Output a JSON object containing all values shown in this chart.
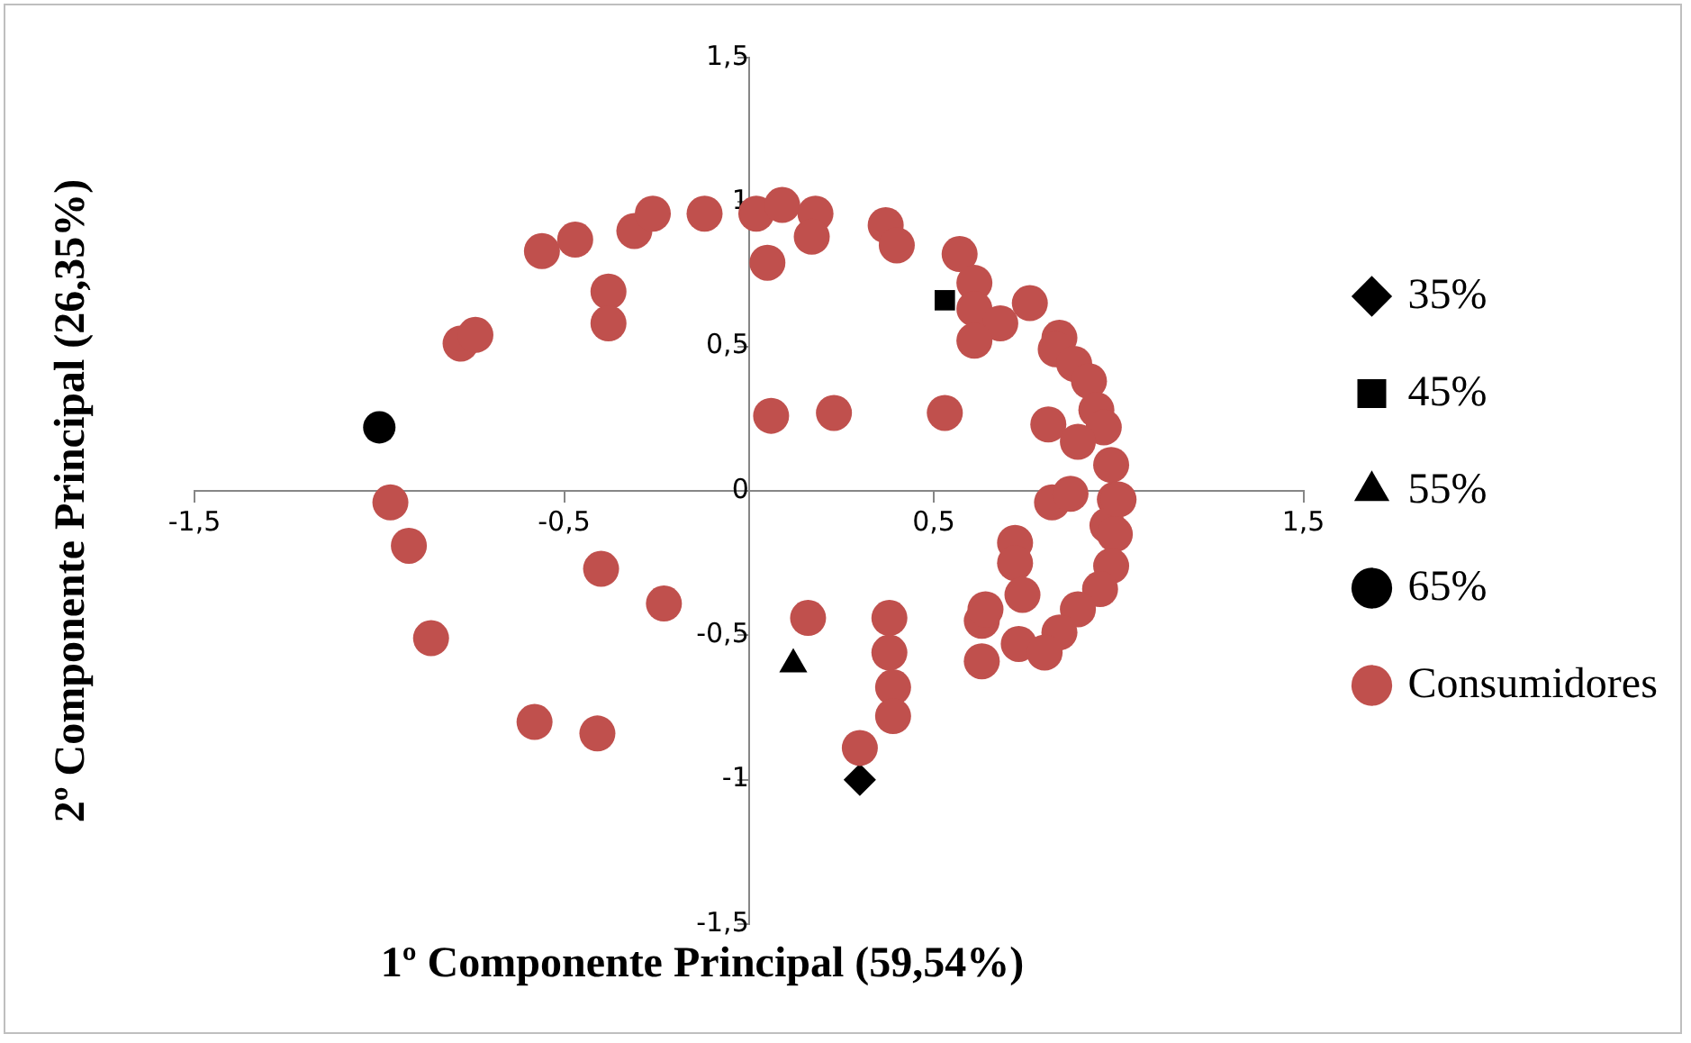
{
  "chart_data": {
    "type": "scatter",
    "xlabel": "1º Componente Principal (59,54%)",
    "ylabel": "2º Componente Principal (26,35%)",
    "xlim": [
      -1.5,
      1.5
    ],
    "ylim": [
      -1.5,
      1.5
    ],
    "xticks": [
      {
        "value": -1.5,
        "label": "-1,5"
      },
      {
        "value": -0.5,
        "label": "-0,5"
      },
      {
        "value": 0.5,
        "label": "0,5"
      },
      {
        "value": 1.5,
        "label": "1,5"
      }
    ],
    "yticks": [
      {
        "value": -1.5,
        "label": "-1,5"
      },
      {
        "value": -1,
        "label": "-1"
      },
      {
        "value": -0.5,
        "label": "-0,5"
      },
      {
        "value": 0,
        "label": "0"
      },
      {
        "value": 0.5,
        "label": "0,5"
      },
      {
        "value": 1,
        "label": "1"
      },
      {
        "value": 1.5,
        "label": "1,5"
      }
    ],
    "grid": false,
    "legend": "right",
    "series": [
      {
        "name": "35%",
        "color": "#000000",
        "marker": "diamond",
        "x": [
          0.3
        ],
        "values": [
          -1.0
        ]
      },
      {
        "name": "45%",
        "color": "#000000",
        "marker": "square",
        "x": [
          0.53
        ],
        "values": [
          0.66
        ]
      },
      {
        "name": "55%",
        "color": "#000000",
        "marker": "triangle",
        "x": [
          0.12
        ],
        "values": [
          -0.6
        ]
      },
      {
        "name": "65%",
        "color": "#000000",
        "marker": "circle",
        "x": [
          -1.0
        ],
        "values": [
          0.22
        ]
      },
      {
        "name": "Consumidores",
        "color": "#c0504d",
        "marker": "circle",
        "x": [
          -0.56,
          -0.47,
          -0.31,
          -0.26,
          -0.12,
          0.02,
          0.09,
          0.18,
          0.17,
          0.05,
          0.37,
          0.4,
          -0.38,
          -0.38,
          -0.78,
          -0.74,
          0.57,
          0.61,
          0.61,
          0.68,
          0.61,
          0.76,
          0.84,
          0.83,
          0.88,
          0.92,
          0.94,
          0.96,
          0.81,
          0.89,
          0.98,
          0.06,
          0.23,
          0.53,
          0.82,
          0.87,
          0.99,
          0.97,
          -0.97,
          -0.92,
          1.0,
          0.99,
          0.98,
          0.95,
          0.89,
          0.84,
          0.72,
          0.72,
          0.73,
          0.8,
          0.63,
          0.63,
          0.16,
          0.38,
          0.38,
          0.39,
          0.39,
          0.3,
          0.64,
          0.74,
          -0.86,
          -0.58,
          -0.41,
          -0.4,
          -0.23
        ],
        "values": [
          0.83,
          0.87,
          0.9,
          0.96,
          0.96,
          0.96,
          0.99,
          0.96,
          0.88,
          0.79,
          0.92,
          0.85,
          0.69,
          0.58,
          0.51,
          0.54,
          0.82,
          0.72,
          0.63,
          0.58,
          0.52,
          0.65,
          0.53,
          0.49,
          0.44,
          0.38,
          0.28,
          0.22,
          0.23,
          0.17,
          0.09,
          0.26,
          0.27,
          0.27,
          -0.04,
          -0.01,
          -0.03,
          -0.12,
          -0.04,
          -0.19,
          -0.03,
          -0.15,
          -0.26,
          -0.34,
          -0.41,
          -0.49,
          -0.18,
          -0.25,
          -0.53,
          -0.56,
          -0.59,
          -0.45,
          -0.44,
          -0.44,
          -0.56,
          -0.68,
          -0.78,
          -0.89,
          -0.41,
          -0.36,
          -0.51,
          -0.8,
          -0.84,
          -0.27,
          -0.39
        ]
      }
    ]
  }
}
